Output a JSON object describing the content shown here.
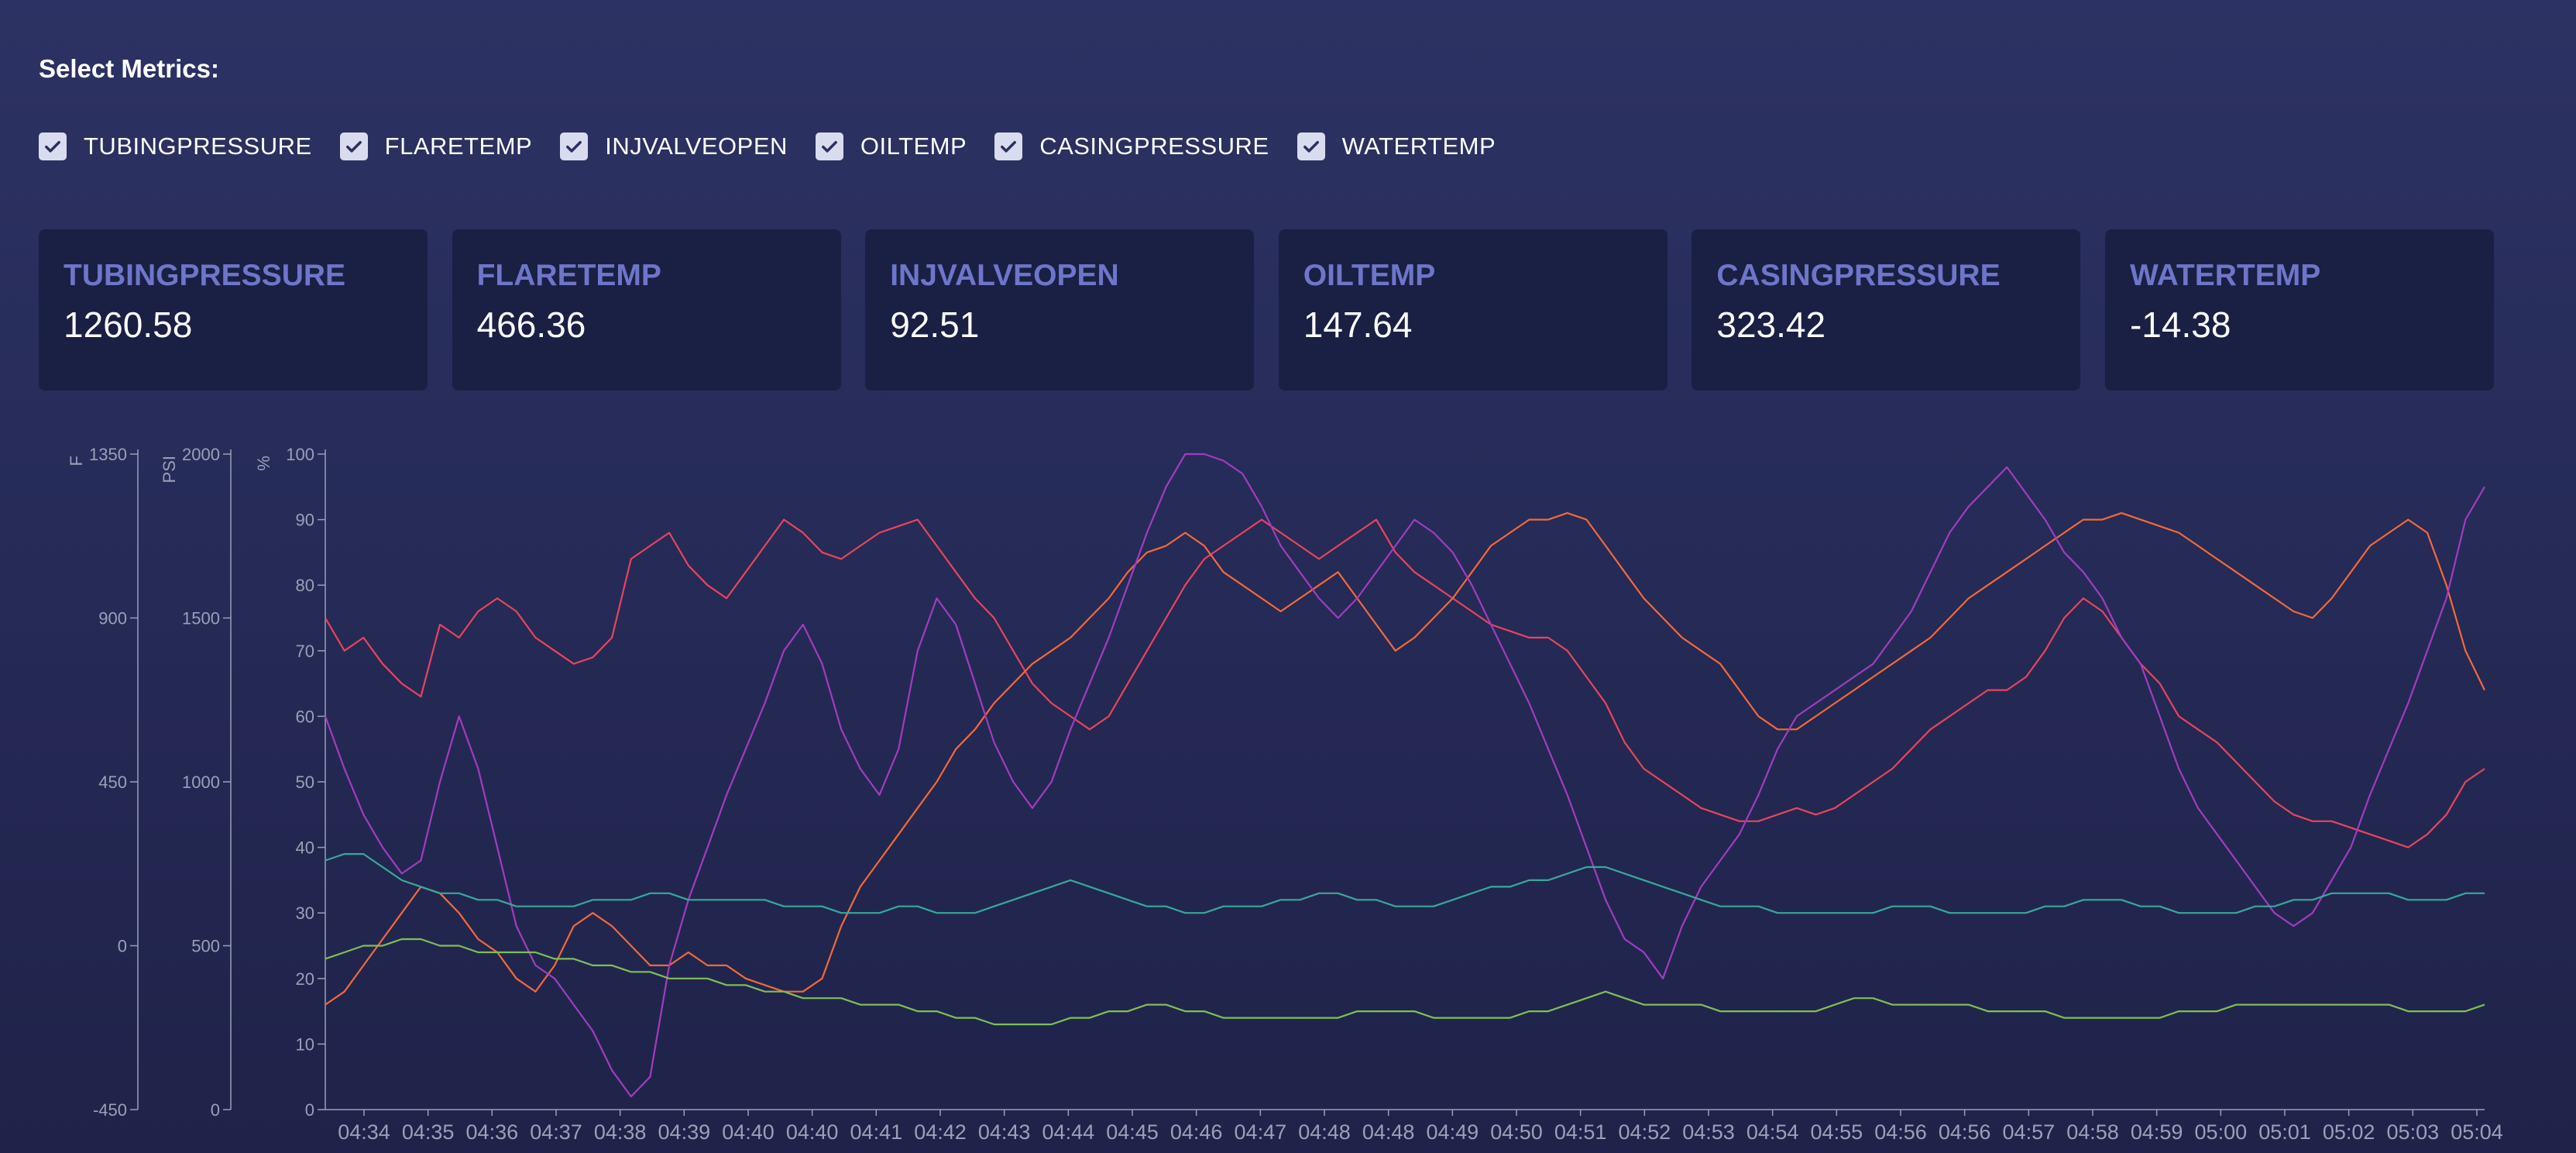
{
  "header": {
    "select_label": "Select Metrics:"
  },
  "metrics": [
    {
      "name": "TUBINGPRESSURE",
      "checked": true,
      "value": "1260.58"
    },
    {
      "name": "FLARETEMP",
      "checked": true,
      "value": "466.36"
    },
    {
      "name": "INJVALVEOPEN",
      "checked": true,
      "value": "92.51"
    },
    {
      "name": "OILTEMP",
      "checked": true,
      "value": "147.64"
    },
    {
      "name": "CASINGPRESSURE",
      "checked": true,
      "value": "323.42"
    },
    {
      "name": "WATERTEMP",
      "checked": true,
      "value": "-14.38"
    }
  ],
  "colors": {
    "accent": "#6e76c9",
    "card_bg": "#1a1f44",
    "axis": "#9aa0b8"
  },
  "chart_data": {
    "type": "line",
    "title": "",
    "axes": [
      {
        "id": "F",
        "label": "F",
        "ticks": [
          1350,
          900,
          450,
          0,
          -450
        ],
        "range": [
          -450,
          1350
        ]
      },
      {
        "id": "PSI",
        "label": "PSI",
        "ticks": [
          2000,
          1500,
          1000,
          500,
          0
        ],
        "range": [
          0,
          2000
        ]
      },
      {
        "id": "pct",
        "label": "%",
        "ticks": [
          100,
          90,
          80,
          70,
          60,
          50,
          40,
          30,
          20,
          10,
          0
        ],
        "range": [
          0,
          100
        ]
      }
    ],
    "x_labels": [
      "04:34",
      "04:35",
      "04:36",
      "04:37",
      "04:38",
      "04:39",
      "04:40",
      "04:40",
      "04:41",
      "04:42",
      "04:43",
      "04:44",
      "04:45",
      "04:46",
      "04:47",
      "04:48",
      "04:48",
      "04:49",
      "04:50",
      "04:51",
      "04:52",
      "04:53",
      "04:54",
      "04:55",
      "04:56",
      "04:56",
      "04:57",
      "04:58",
      "04:59",
      "05:00",
      "05:01",
      "05:02",
      "05:03",
      "05:04"
    ],
    "series": [
      {
        "name": "TUBINGPRESSURE",
        "color": "#e8445e",
        "axis": "pct",
        "values": [
          75,
          70,
          72,
          68,
          65,
          63,
          74,
          72,
          76,
          78,
          76,
          72,
          70,
          68,
          69,
          72,
          84,
          86,
          88,
          83,
          80,
          78,
          82,
          86,
          90,
          88,
          85,
          84,
          86,
          88,
          89,
          90,
          86,
          82,
          78,
          75,
          70,
          65,
          62,
          60,
          58,
          60,
          65,
          70,
          75,
          80,
          84,
          86,
          88,
          90,
          88,
          86,
          84,
          86,
          88,
          90,
          85,
          82,
          80,
          78,
          76,
          74,
          73,
          72,
          72,
          70,
          66,
          62,
          56,
          52,
          50,
          48,
          46,
          45,
          44,
          44,
          45,
          46,
          45,
          46,
          48,
          50,
          52,
          55,
          58,
          60,
          62,
          64,
          64,
          66,
          70,
          75,
          78,
          76,
          72,
          68,
          65,
          60,
          58,
          56,
          53,
          50,
          47,
          45,
          44,
          44,
          43,
          42,
          41,
          40,
          42,
          45,
          50,
          52
        ]
      },
      {
        "name": "FLARETEMP",
        "color": "#f2693c",
        "axis": "pct",
        "values": [
          16,
          18,
          22,
          26,
          30,
          34,
          33,
          30,
          26,
          24,
          20,
          18,
          22,
          28,
          30,
          28,
          25,
          22,
          22,
          24,
          22,
          22,
          20,
          19,
          18,
          18,
          20,
          28,
          34,
          38,
          42,
          46,
          50,
          55,
          58,
          62,
          65,
          68,
          70,
          72,
          75,
          78,
          82,
          85,
          86,
          88,
          86,
          82,
          80,
          78,
          76,
          78,
          80,
          82,
          78,
          74,
          70,
          72,
          75,
          78,
          82,
          86,
          88,
          90,
          90,
          91,
          90,
          86,
          82,
          78,
          75,
          72,
          70,
          68,
          64,
          60,
          58,
          58,
          60,
          62,
          64,
          66,
          68,
          70,
          72,
          75,
          78,
          80,
          82,
          84,
          86,
          88,
          90,
          90,
          91,
          90,
          89,
          88,
          86,
          84,
          82,
          80,
          78,
          76,
          75,
          78,
          82,
          86,
          88,
          90,
          88,
          80,
          70,
          64
        ]
      },
      {
        "name": "INJVALVEOPEN",
        "color": "#a13cc0",
        "axis": "pct",
        "values": [
          60,
          52,
          45,
          40,
          36,
          38,
          50,
          60,
          52,
          40,
          28,
          22,
          20,
          16,
          12,
          6,
          2,
          5,
          22,
          32,
          40,
          48,
          55,
          62,
          70,
          74,
          68,
          58,
          52,
          48,
          55,
          70,
          78,
          74,
          65,
          56,
          50,
          46,
          50,
          58,
          65,
          72,
          80,
          88,
          95,
          100,
          100,
          99,
          97,
          92,
          86,
          82,
          78,
          75,
          78,
          82,
          86,
          90,
          88,
          85,
          80,
          74,
          68,
          62,
          55,
          48,
          40,
          32,
          26,
          24,
          20,
          28,
          34,
          38,
          42,
          48,
          55,
          60,
          62,
          64,
          66,
          68,
          72,
          76,
          82,
          88,
          92,
          95,
          98,
          94,
          90,
          85,
          82,
          78,
          72,
          68,
          60,
          52,
          46,
          42,
          38,
          34,
          30,
          28,
          30,
          35,
          40,
          48,
          55,
          62,
          70,
          78,
          90,
          95
        ]
      },
      {
        "name": "OILTEMP",
        "color": "#3aa79a",
        "axis": "pct",
        "values": [
          38,
          39,
          39,
          37,
          35,
          34,
          33,
          33,
          32,
          32,
          31,
          31,
          31,
          31,
          32,
          32,
          32,
          33,
          33,
          32,
          32,
          32,
          32,
          32,
          31,
          31,
          31,
          30,
          30,
          30,
          31,
          31,
          30,
          30,
          30,
          31,
          32,
          33,
          34,
          35,
          34,
          33,
          32,
          31,
          31,
          30,
          30,
          31,
          31,
          31,
          32,
          32,
          33,
          33,
          32,
          32,
          31,
          31,
          31,
          32,
          33,
          34,
          34,
          35,
          35,
          36,
          37,
          37,
          36,
          35,
          34,
          33,
          32,
          31,
          31,
          31,
          30,
          30,
          30,
          30,
          30,
          30,
          31,
          31,
          31,
          30,
          30,
          30,
          30,
          30,
          31,
          31,
          32,
          32,
          32,
          31,
          31,
          30,
          30,
          30,
          30,
          31,
          31,
          32,
          32,
          33,
          33,
          33,
          33,
          32,
          32,
          32,
          33,
          33
        ]
      },
      {
        "name": "CASINGPRESSURE",
        "color": "#7fbf57",
        "axis": "pct",
        "values": [
          23,
          24,
          25,
          25,
          26,
          26,
          25,
          25,
          24,
          24,
          24,
          24,
          23,
          23,
          22,
          22,
          21,
          21,
          20,
          20,
          20,
          19,
          19,
          18,
          18,
          17,
          17,
          17,
          16,
          16,
          16,
          15,
          15,
          14,
          14,
          13,
          13,
          13,
          13,
          14,
          14,
          15,
          15,
          16,
          16,
          15,
          15,
          14,
          14,
          14,
          14,
          14,
          14,
          14,
          15,
          15,
          15,
          15,
          14,
          14,
          14,
          14,
          14,
          15,
          15,
          16,
          17,
          18,
          17,
          16,
          16,
          16,
          16,
          15,
          15,
          15,
          15,
          15,
          15,
          16,
          17,
          17,
          16,
          16,
          16,
          16,
          16,
          15,
          15,
          15,
          15,
          14,
          14,
          14,
          14,
          14,
          14,
          15,
          15,
          15,
          16,
          16,
          16,
          16,
          16,
          16,
          16,
          16,
          16,
          15,
          15,
          15,
          15,
          16
        ]
      },
      {
        "name": "WATERTEMP",
        "color": "#5a7be0",
        "axis": "pct",
        "values": []
      }
    ]
  }
}
